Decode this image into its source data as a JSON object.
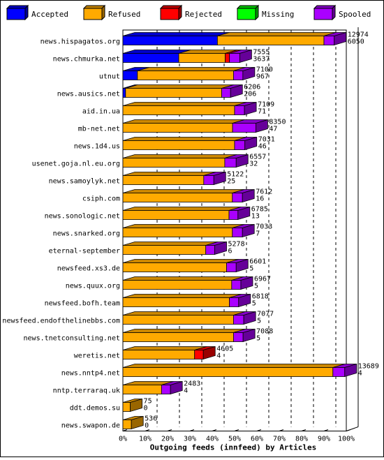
{
  "legend": {
    "items": [
      {
        "name": "Accepted",
        "color": "#0000FF"
      },
      {
        "name": "Refused",
        "color": "#FFAA00"
      },
      {
        "name": "Rejected",
        "color": "#FF0000"
      },
      {
        "name": "Missing",
        "color": "#00FF00"
      },
      {
        "name": "Spooled",
        "color": "#AA00FF"
      }
    ]
  },
  "chart_data": {
    "type": "bar",
    "orientation": "horizontal",
    "stacked": true,
    "title": "",
    "xlabel": "Outgoing feeds (innfeed) by Articles",
    "ylabel": "",
    "xlim": [
      0,
      100
    ],
    "x_ticks": [
      "0%",
      "10%",
      "20%",
      "30%",
      "40%",
      "50%",
      "60%",
      "70%",
      "80%",
      "90%",
      "100%"
    ],
    "x_tick_values": [
      0,
      10,
      20,
      30,
      40,
      50,
      60,
      70,
      80,
      90,
      100
    ],
    "grid": true,
    "legend_position": "top",
    "categories": [
      "news.hispagatos.org",
      "news.chmurka.net",
      "utnut",
      "news.ausics.net",
      "aid.in.ua",
      "mb-net.net",
      "news.1d4.us",
      "usenet.goja.nl.eu.org",
      "news.samoylyk.net",
      "csiph.com",
      "news.sonologic.net",
      "news.snarked.org",
      "eternal-september",
      "newsfeed.xs3.de",
      "news.quux.org",
      "newsfeed.bofh.team",
      "newsfeed.endofthelinebbs.com",
      "news.tnetconsulting.net",
      "weretis.net",
      "news.nntp4.net",
      "nntp.terraraq.uk",
      "ddt.demos.su",
      "news.swapon.de"
    ],
    "offered_labels": [
      "12974",
      "7555",
      "7100",
      "6206",
      "7109",
      "8350",
      "7031",
      "6557",
      "5122",
      "7612",
      "6785",
      "7033",
      "5278",
      "6601",
      "6967",
      "6818",
      "7077",
      "7088",
      "4605",
      "13689",
      "2483",
      "75",
      "536"
    ],
    "refused_labels": [
      "6050",
      "3637",
      "967",
      "206",
      "71",
      "47",
      "46",
      "32",
      "25",
      "16",
      "13",
      "7",
      "6",
      "5",
      "5",
      "5",
      "5",
      "5",
      "4",
      "4",
      "4",
      "0",
      "0"
    ],
    "series": [
      {
        "name": "Accepted",
        "color": "#0000FF",
        "values": [
          42.3,
          25.0,
          6.5,
          1.2,
          0,
          0,
          0,
          0,
          0,
          0,
          0,
          0,
          0,
          0,
          0,
          0,
          0,
          0,
          0,
          0,
          0,
          0,
          0
        ]
      },
      {
        "name": "Refused",
        "color": "#FFAA00",
        "values": [
          47.7,
          20.8,
          43.0,
          43.0,
          50.0,
          49.1,
          50.0,
          45.6,
          36.2,
          49.0,
          47.5,
          49.0,
          37.1,
          46.4,
          48.7,
          47.7,
          49.5,
          49.5,
          32.1,
          94.0,
          17.3,
          3.3,
          3.8
        ]
      },
      {
        "name": "Rejected",
        "color": "#FF0000",
        "values": [
          0,
          1.9,
          0,
          0,
          0,
          0,
          0,
          0,
          0,
          0,
          0,
          0,
          0,
          0,
          0,
          0,
          0,
          0,
          3.9,
          0,
          0,
          0,
          0
        ]
      },
      {
        "name": "Missing",
        "color": "#00FF00",
        "values": [
          0,
          0,
          0,
          0,
          0,
          0,
          0,
          0,
          0,
          0,
          0,
          0,
          0,
          0,
          0,
          0,
          0,
          0,
          0,
          0,
          0,
          0,
          0
        ]
      },
      {
        "name": "Spooled",
        "color": "#AA00FF",
        "values": [
          4.6,
          4.6,
          4.2,
          4.0,
          4.4,
          10.4,
          4.6,
          5.1,
          4.5,
          4.5,
          4.0,
          4.5,
          4.0,
          4.3,
          4.1,
          4.1,
          4.6,
          4.3,
          0,
          5.3,
          4.0,
          0,
          0
        ]
      }
    ]
  }
}
